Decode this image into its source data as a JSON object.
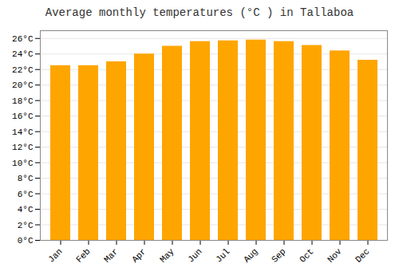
{
  "chart_data": {
    "type": "bar",
    "title": "Average monthly temperatures (°C ) in Tallaboa",
    "categories": [
      "Jan",
      "Feb",
      "Mar",
      "Apr",
      "May",
      "Jun",
      "Jul",
      "Aug",
      "Sep",
      "Oct",
      "Nov",
      "Dec"
    ],
    "values": [
      22.5,
      22.5,
      23.0,
      24.0,
      25.0,
      25.6,
      25.7,
      25.8,
      25.6,
      25.1,
      24.4,
      23.2
    ],
    "color": "#FFA500",
    "ylim": [
      0,
      27
    ],
    "yticks": [
      {
        "value": 0,
        "label": "0°C"
      },
      {
        "value": 2,
        "label": "2°C"
      },
      {
        "value": 4,
        "label": "4°C"
      },
      {
        "value": 6,
        "label": "6°C"
      },
      {
        "value": 8,
        "label": "8°C"
      },
      {
        "value": 10,
        "label": "10°C"
      },
      {
        "value": 12,
        "label": "12°C"
      },
      {
        "value": 14,
        "label": "14°C"
      },
      {
        "value": 16,
        "label": "16°C"
      },
      {
        "value": 18,
        "label": "18°C"
      },
      {
        "value": 20,
        "label": "20°C"
      },
      {
        "value": 22,
        "label": "22°C"
      },
      {
        "value": 24,
        "label": "24°C"
      },
      {
        "value": 26,
        "label": "26°C"
      }
    ],
    "grid": true
  }
}
